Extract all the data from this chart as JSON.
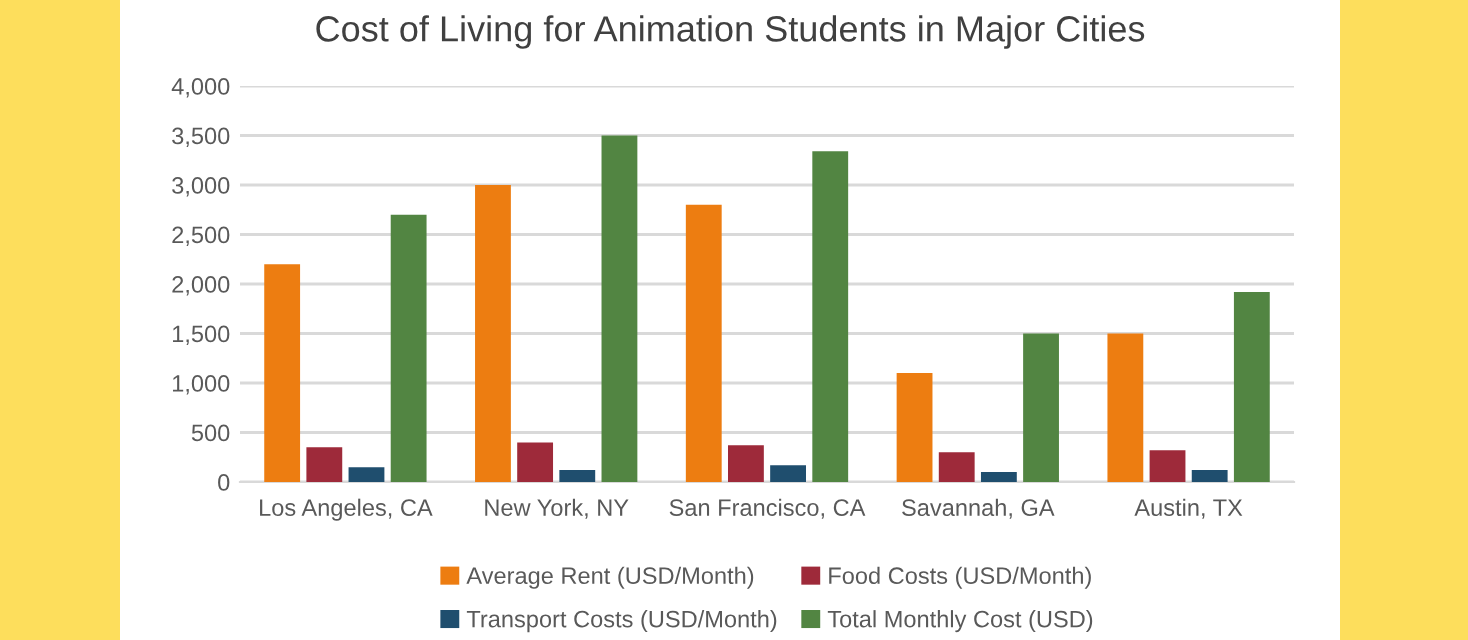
{
  "chart_data": {
    "type": "bar",
    "title": "Cost of Living for Animation Students in Major Cities",
    "categories": [
      "Los Angeles, CA",
      "New York, NY",
      "San Francisco, CA",
      "Savannah, GA",
      "Austin, TX"
    ],
    "series": [
      {
        "name": "Average Rent (USD/Month)",
        "color": "#ed7d11",
        "values": [
          2200,
          3000,
          2800,
          1100,
          1500
        ]
      },
      {
        "name": "Food Costs (USD/Month)",
        "color": "#9e2a3a",
        "values": [
          350,
          400,
          370,
          300,
          320
        ]
      },
      {
        "name": "Transport Costs (USD/Month)",
        "color": "#1f4e6e",
        "values": [
          150,
          120,
          170,
          100,
          120
        ]
      },
      {
        "name": "Total Monthly Cost (USD)",
        "color": "#528542",
        "values": [
          2700,
          3500,
          3340,
          1500,
          1920
        ]
      }
    ],
    "ylim": [
      0,
      4000
    ],
    "yticks": [
      {
        "value": 0,
        "label": "0"
      },
      {
        "value": 500,
        "label": "500"
      },
      {
        "value": 1000,
        "label": "1,000"
      },
      {
        "value": 1500,
        "label": "1,500"
      },
      {
        "value": 2000,
        "label": "2,000"
      },
      {
        "value": 2500,
        "label": "2,500"
      },
      {
        "value": 3000,
        "label": "3,000"
      },
      {
        "value": 3500,
        "label": "3,500"
      },
      {
        "value": 4000,
        "label": "4,000"
      }
    ],
    "grid": "y",
    "legend": "bottom"
  }
}
